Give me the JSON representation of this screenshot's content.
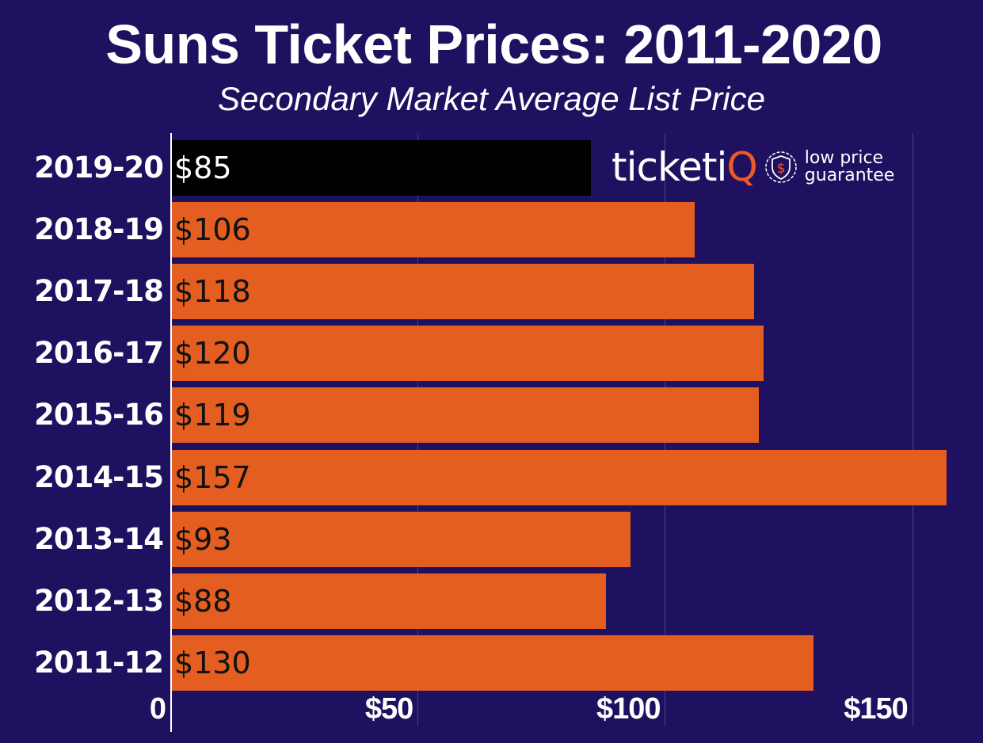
{
  "header": {
    "title": "Suns Ticket Prices: 2011-2020",
    "subtitle": "Secondary Market Average List Price"
  },
  "logo": {
    "brand_main": "ticketi",
    "brand_accent": "Q",
    "tagline_line1": "low price",
    "tagline_line2": "guarantee",
    "badge_icon": "shield-dollar-icon"
  },
  "colors": {
    "background": "#1f1160",
    "bar": "#e35e20",
    "highlight_bar": "#000000",
    "text": "#ffffff"
  },
  "chart_data": {
    "type": "bar",
    "orientation": "horizontal",
    "title": "Suns Ticket Prices: 2011-2020",
    "subtitle": "Secondary Market Average List Price",
    "xlabel": "",
    "ylabel": "",
    "categories": [
      "2019-20",
      "2018-19",
      "2017-18",
      "2016-17",
      "2015-16",
      "2014-15",
      "2013-14",
      "2012-13",
      "2011-12"
    ],
    "values": [
      85,
      106,
      118,
      120,
      119,
      157,
      93,
      88,
      130
    ],
    "value_labels": [
      "$85",
      "$106",
      "$118",
      "$120",
      "$119",
      "$157",
      "$93",
      "$88",
      "$130"
    ],
    "highlighted_category": "2019-20",
    "xlim": [
      0,
      165
    ],
    "x_ticks": [
      0,
      50,
      100,
      150
    ],
    "x_tick_labels": [
      "0",
      "$50",
      "$100",
      "$150"
    ],
    "grid": "vertical",
    "legend": "none"
  }
}
